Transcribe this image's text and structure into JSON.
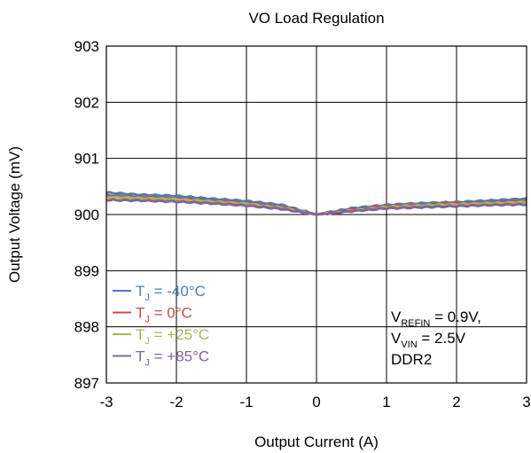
{
  "chart_data": {
    "type": "line",
    "title": "VO Load Regulation",
    "xlabel": "Output Current (A)",
    "ylabel": "Output Voltage (mV)",
    "xlim": [
      -3,
      3
    ],
    "ylim": [
      897,
      903
    ],
    "xticks": [
      "-3",
      "-2",
      "-1",
      "0",
      "1",
      "2",
      "3"
    ],
    "yticks": [
      "897",
      "898",
      "899",
      "900",
      "901",
      "902",
      "903"
    ],
    "grid": true,
    "legend": {
      "placement": "bottom-left",
      "entries": [
        {
          "main": "T",
          "sub": "J",
          "rest": " = -40°C",
          "color": "#4a7ebb"
        },
        {
          "main": "T",
          "sub": "J",
          "rest": " = 0°C",
          "color": "#c0504d"
        },
        {
          "main": "T",
          "sub": "J",
          "rest": " = +25°C",
          "color": "#9bbb59"
        },
        {
          "main": "T",
          "sub": "J",
          "rest": " = +85°C",
          "color": "#8064a2"
        }
      ]
    },
    "annotation": {
      "line1": {
        "main": "V",
        "sub": "REFIN",
        "rest": " = 0.9V,"
      },
      "line2": {
        "main": "V",
        "sub": "VIN",
        "rest": " = 2.5V"
      },
      "line3": "DDR2"
    },
    "series": [
      {
        "name": "TJ = -40°C",
        "color": "#4a7ebb",
        "x": [
          -3,
          -2.5,
          -2,
          -1.5,
          -1,
          -0.5,
          0,
          0.5,
          1,
          1.5,
          2,
          2.5,
          3
        ],
        "y": [
          900.39,
          900.35,
          900.33,
          900.28,
          900.24,
          900.17,
          900.0,
          900.11,
          900.17,
          900.2,
          900.22,
          900.25,
          900.28
        ]
      },
      {
        "name": "TJ = 0°C",
        "color": "#c0504d",
        "x": [
          -3,
          -2.5,
          -2,
          -1.5,
          -1,
          -0.5,
          0,
          0.5,
          1,
          1.5,
          2,
          2.5,
          3
        ],
        "y": [
          900.34,
          900.31,
          900.29,
          900.25,
          900.21,
          900.14,
          900.0,
          900.09,
          900.15,
          900.18,
          900.2,
          900.22,
          900.24
        ]
      },
      {
        "name": "TJ = +25°C",
        "color": "#9bbb59",
        "x": [
          -3,
          -2.5,
          -2,
          -1.5,
          -1,
          -0.5,
          0,
          0.5,
          1,
          1.5,
          2,
          2.5,
          3
        ],
        "y": [
          900.31,
          900.29,
          900.27,
          900.23,
          900.19,
          900.12,
          900.0,
          900.07,
          900.13,
          900.16,
          900.18,
          900.2,
          900.22
        ]
      },
      {
        "name": "TJ = +85°C",
        "color": "#8064a2",
        "x": [
          -3,
          -2.5,
          -2,
          -1.5,
          -1,
          -0.5,
          0,
          0.5,
          1,
          1.5,
          2,
          2.5,
          3
        ],
        "y": [
          900.26,
          900.25,
          900.23,
          900.2,
          900.16,
          900.1,
          900.0,
          900.06,
          900.11,
          900.13,
          900.15,
          900.17,
          900.18
        ]
      }
    ]
  }
}
